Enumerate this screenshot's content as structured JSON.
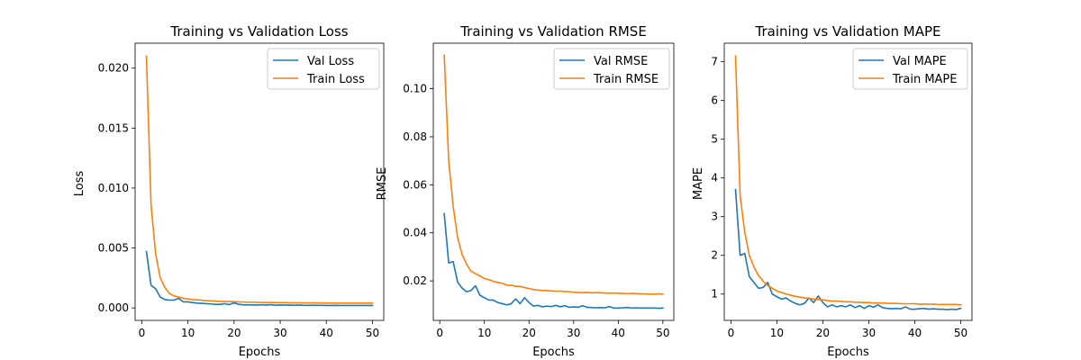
{
  "colors": {
    "val": "#1f77b4",
    "train": "#ff7f0e"
  },
  "chart_data": [
    {
      "type": "line",
      "title": "Training vs Validation Loss",
      "xlabel": "Epochs",
      "ylabel": "Loss",
      "xlim": [
        -1.45,
        52.45
      ],
      "ylim": [
        -0.00104,
        0.02208
      ],
      "xticks": [
        0,
        10,
        20,
        30,
        40,
        50
      ],
      "xtick_labels": [
        "0",
        "10",
        "20",
        "30",
        "40",
        "50"
      ],
      "yticks": [
        0.0,
        0.005,
        0.01,
        0.015,
        0.02
      ],
      "ytick_labels": [
        "0.000",
        "0.005",
        "0.010",
        "0.015",
        "0.020"
      ],
      "legend_position": "top-right",
      "x": [
        1,
        2,
        3,
        4,
        5,
        6,
        7,
        8,
        9,
        10,
        11,
        12,
        13,
        14,
        15,
        16,
        17,
        18,
        19,
        20,
        21,
        22,
        23,
        24,
        25,
        26,
        27,
        28,
        29,
        30,
        31,
        32,
        33,
        34,
        35,
        36,
        37,
        38,
        39,
        40,
        41,
        42,
        43,
        44,
        45,
        46,
        47,
        48,
        49,
        50
      ],
      "series": [
        {
          "name": "Val Loss",
          "color_key": "val",
          "values": [
            0.0047,
            0.0019,
            0.0016,
            0.0009,
            0.0007,
            0.00065,
            0.00065,
            0.0008,
            0.0005,
            0.0005,
            0.00045,
            0.0004,
            0.00038,
            0.00035,
            0.00033,
            0.0003,
            0.0003,
            0.00035,
            0.00028,
            0.00042,
            0.0003,
            0.00026,
            0.00025,
            0.00025,
            0.00024,
            0.00026,
            0.00023,
            0.00027,
            0.00022,
            0.00024,
            0.00023,
            0.00024,
            0.00022,
            0.00024,
            0.00022,
            0.00021,
            0.00022,
            0.00021,
            0.00021,
            0.0002,
            0.0002,
            0.00021,
            0.0002,
            0.0002,
            0.0002,
            0.0002,
            0.0002,
            0.0002,
            0.0002,
            0.0002
          ]
        },
        {
          "name": "Train Loss",
          "color_key": "train",
          "values": [
            0.021,
            0.0086,
            0.0045,
            0.0025,
            0.0017,
            0.0012,
            0.001,
            0.0009,
            0.0008,
            0.00075,
            0.0007,
            0.00067,
            0.00064,
            0.00061,
            0.00059,
            0.00057,
            0.00055,
            0.00054,
            0.00053,
            0.00052,
            0.0005,
            0.00049,
            0.00048,
            0.00048,
            0.00047,
            0.00046,
            0.00046,
            0.00045,
            0.00045,
            0.00044,
            0.00044,
            0.00043,
            0.00043,
            0.00043,
            0.00042,
            0.00042,
            0.00042,
            0.00041,
            0.00041,
            0.00041,
            0.0004,
            0.0004,
            0.0004,
            0.0004,
            0.0004,
            0.0004,
            0.0004,
            0.0004,
            0.0004,
            0.0004
          ]
        }
      ]
    },
    {
      "type": "line",
      "title": "Training vs Validation RMSE",
      "xlabel": "Epochs",
      "ylabel": "RMSE",
      "xlim": [
        -1.45,
        52.45
      ],
      "ylim": [
        0.00355,
        0.11895
      ],
      "xticks": [
        0,
        10,
        20,
        30,
        40,
        50
      ],
      "xtick_labels": [
        "0",
        "10",
        "20",
        "30",
        "40",
        "50"
      ],
      "yticks": [
        0.02,
        0.04,
        0.06,
        0.08,
        0.1
      ],
      "ytick_labels": [
        "0.02",
        "0.04",
        "0.06",
        "0.08",
        "0.10"
      ],
      "legend_position": "top-right",
      "x": [
        1,
        2,
        3,
        4,
        5,
        6,
        7,
        8,
        9,
        10,
        11,
        12,
        13,
        14,
        15,
        16,
        17,
        18,
        19,
        20,
        21,
        22,
        23,
        24,
        25,
        26,
        27,
        28,
        29,
        30,
        31,
        32,
        33,
        34,
        35,
        36,
        37,
        38,
        39,
        40,
        41,
        42,
        43,
        44,
        45,
        46,
        47,
        48,
        49,
        50
      ],
      "series": [
        {
          "name": "Val RMSE",
          "color_key": "val",
          "values": [
            0.048,
            0.0275,
            0.028,
            0.0195,
            0.017,
            0.0155,
            0.016,
            0.018,
            0.014,
            0.013,
            0.012,
            0.012,
            0.011,
            0.0105,
            0.01,
            0.0105,
            0.0125,
            0.0105,
            0.013,
            0.011,
            0.0095,
            0.0098,
            0.0092,
            0.0095,
            0.0093,
            0.0098,
            0.0092,
            0.0097,
            0.009,
            0.0092,
            0.009,
            0.0097,
            0.009,
            0.0089,
            0.0088,
            0.0089,
            0.0088,
            0.0093,
            0.0087,
            0.0087,
            0.0088,
            0.0089,
            0.0087,
            0.0088,
            0.0087,
            0.0087,
            0.0087,
            0.0087,
            0.0086,
            0.0087
          ]
        },
        {
          "name": "Train RMSE",
          "color_key": "train",
          "values": [
            0.114,
            0.07,
            0.051,
            0.038,
            0.031,
            0.027,
            0.024,
            0.023,
            0.022,
            0.021,
            0.0205,
            0.0198,
            0.0193,
            0.019,
            0.0182,
            0.0182,
            0.0177,
            0.0177,
            0.0172,
            0.0168,
            0.0164,
            0.0162,
            0.016,
            0.016,
            0.0158,
            0.0157,
            0.0157,
            0.0156,
            0.0155,
            0.0153,
            0.0152,
            0.0151,
            0.0152,
            0.015,
            0.0151,
            0.0151,
            0.0149,
            0.0149,
            0.0149,
            0.0148,
            0.0148,
            0.0147,
            0.0148,
            0.0147,
            0.0146,
            0.0146,
            0.0145,
            0.0145,
            0.0146,
            0.0145
          ]
        }
      ]
    },
    {
      "type": "line",
      "title": "Training vs Validation MAPE",
      "xlabel": "Epochs",
      "ylabel": "MAPE",
      "xlim": [
        -1.45,
        52.45
      ],
      "ylim": [
        0.32,
        7.48
      ],
      "xticks": [
        0,
        10,
        20,
        30,
        40,
        50
      ],
      "xtick_labels": [
        "0",
        "10",
        "20",
        "30",
        "40",
        "50"
      ],
      "yticks": [
        1,
        2,
        3,
        4,
        5,
        6,
        7
      ],
      "ytick_labels": [
        "1",
        "2",
        "3",
        "4",
        "5",
        "6",
        "7"
      ],
      "legend_position": "top-right",
      "x": [
        1,
        2,
        3,
        4,
        5,
        6,
        7,
        8,
        9,
        10,
        11,
        12,
        13,
        14,
        15,
        16,
        17,
        18,
        19,
        20,
        21,
        22,
        23,
        24,
        25,
        26,
        27,
        28,
        29,
        30,
        31,
        32,
        33,
        34,
        35,
        36,
        37,
        38,
        39,
        40,
        41,
        42,
        43,
        44,
        45,
        46,
        47,
        48,
        49,
        50
      ],
      "series": [
        {
          "name": "Val MAPE",
          "color_key": "val",
          "values": [
            3.7,
            2.0,
            2.05,
            1.45,
            1.3,
            1.15,
            1.17,
            1.3,
            1.0,
            0.93,
            0.87,
            0.9,
            0.82,
            0.76,
            0.72,
            0.76,
            0.9,
            0.78,
            0.95,
            0.78,
            0.67,
            0.72,
            0.67,
            0.7,
            0.67,
            0.72,
            0.65,
            0.7,
            0.63,
            0.7,
            0.66,
            0.72,
            0.65,
            0.63,
            0.62,
            0.63,
            0.62,
            0.67,
            0.61,
            0.61,
            0.62,
            0.63,
            0.61,
            0.62,
            0.61,
            0.61,
            0.6,
            0.61,
            0.6,
            0.63
          ]
        },
        {
          "name": "Train MAPE",
          "color_key": "train",
          "values": [
            7.15,
            3.55,
            2.6,
            2.0,
            1.7,
            1.48,
            1.33,
            1.22,
            1.15,
            1.08,
            1.04,
            1.0,
            0.97,
            0.94,
            0.92,
            0.9,
            0.89,
            0.87,
            0.86,
            0.85,
            0.83,
            0.82,
            0.82,
            0.81,
            0.8,
            0.8,
            0.79,
            0.79,
            0.78,
            0.78,
            0.77,
            0.77,
            0.77,
            0.76,
            0.76,
            0.76,
            0.75,
            0.75,
            0.75,
            0.75,
            0.74,
            0.74,
            0.74,
            0.74,
            0.73,
            0.73,
            0.73,
            0.73,
            0.73,
            0.72
          ]
        }
      ]
    }
  ]
}
